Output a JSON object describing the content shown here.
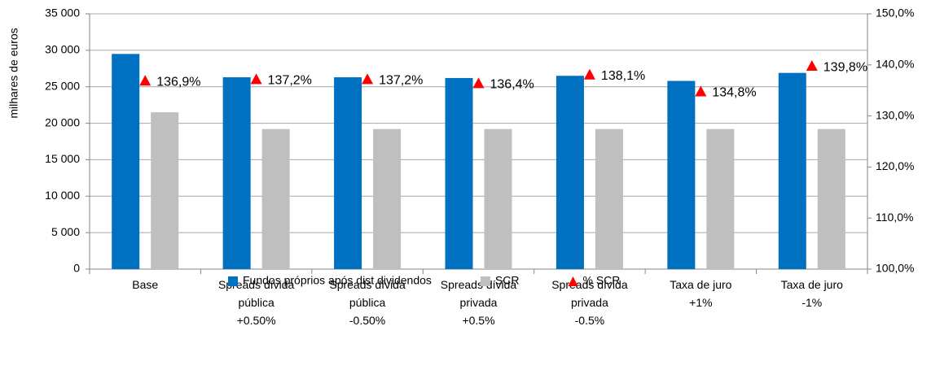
{
  "chart_data": {
    "type": "bar",
    "y_label": "milhares de euros",
    "categories": [
      [
        "Base"
      ],
      [
        "Spreads dívida",
        "pública",
        "+0.50%"
      ],
      [
        "Spreads dívida",
        "pública",
        "-0.50%"
      ],
      [
        "Spreads dívida",
        "privada",
        "+0.5%"
      ],
      [
        "Spreads dívida",
        "privada",
        "-0.5%"
      ],
      [
        "Taxa de juro",
        "+1%"
      ],
      [
        "Taxa de juro",
        "-1%"
      ]
    ],
    "series": [
      {
        "name": "Fundos próprios após dist dividendos",
        "color": "#0070c0",
        "values": [
          29500,
          26300,
          26300,
          26200,
          26500,
          25800,
          26900
        ]
      },
      {
        "name": "SCR",
        "color": "#bfbfbf",
        "values": [
          21500,
          19200,
          19200,
          19200,
          19200,
          19200,
          19200
        ]
      },
      {
        "name": "% SCR",
        "color": "#ff0000",
        "axis": "y2",
        "marker": "triangle",
        "values": [
          136.9,
          137.2,
          137.2,
          136.4,
          138.1,
          134.8,
          139.8
        ],
        "value_labels": [
          "136,9%",
          "137,2%",
          "137,2%",
          "136,4%",
          "138,1%",
          "134,8%",
          "139,8%"
        ]
      }
    ],
    "ylim": [
      0,
      35000
    ],
    "yticks": [
      0,
      {
        "value": 5000,
        "label": "5 000"
      },
      {
        "value": 10000,
        "label": "10 000"
      },
      {
        "value": 15000,
        "label": "15 000"
      },
      {
        "value": 20000,
        "label": "20 000"
      },
      {
        "value": 25000,
        "label": "25 000"
      },
      {
        "value": 30000,
        "label": "30 000"
      },
      {
        "value": 35000,
        "label": "35 000"
      }
    ],
    "y2lim": [
      100,
      150
    ],
    "y2ticks": [
      {
        "value": 100,
        "label": "100,0%"
      },
      {
        "value": 110,
        "label": "110,0%"
      },
      {
        "value": 120,
        "label": "120,0%"
      },
      {
        "value": 130,
        "label": "130,0%"
      },
      {
        "value": 140,
        "label": "140,0%"
      },
      {
        "value": 150,
        "label": "150,0%"
      }
    ],
    "grid": true,
    "legend": "bottom"
  }
}
